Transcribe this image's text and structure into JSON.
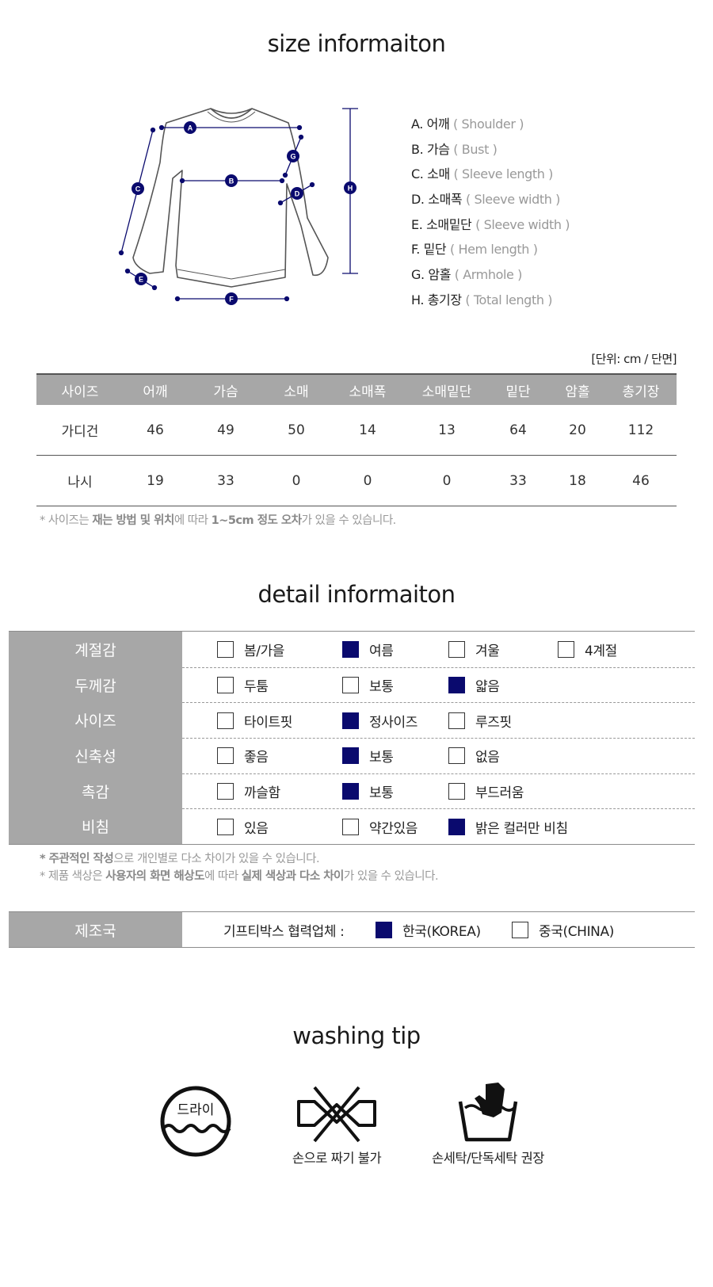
{
  "size_info": {
    "title": "size informaiton",
    "diagram_markers": [
      "A",
      "B",
      "C",
      "D",
      "E",
      "F",
      "G",
      "H"
    ],
    "legend": [
      {
        "code": "A. 어깨",
        "en": "( Shoulder )"
      },
      {
        "code": "B. 가슴",
        "en": "( Bust )"
      },
      {
        "code": "C. 소매",
        "en": "( Sleeve length )"
      },
      {
        "code": "D. 소매폭",
        "en": "( Sleeve width )"
      },
      {
        "code": "E. 소매밑단",
        "en": "( Sleeve width )"
      },
      {
        "code": "F. 밑단",
        "en": "( Hem length )"
      },
      {
        "code": "G. 암홀",
        "en": "( Armhole )"
      },
      {
        "code": "H. 총기장",
        "en": "( Total length )"
      }
    ],
    "unit": "[단위: cm / 단면]",
    "table": {
      "headers": [
        "사이즈",
        "어깨",
        "가슴",
        "소매",
        "소매폭",
        "소매밑단",
        "밑단",
        "암홀",
        "총기장"
      ],
      "rows": [
        [
          "가디건",
          "46",
          "49",
          "50",
          "14",
          "13",
          "64",
          "20",
          "112"
        ],
        [
          "나시",
          "19",
          "33",
          "0",
          "0",
          "0",
          "33",
          "18",
          "46"
        ]
      ]
    },
    "note": {
      "p1": "* 사이즈는 ",
      "b1": "재는 방법 및 위치",
      "p2": "에 따라 ",
      "b2": "1~5cm 정도 오차",
      "p3": "가 있을 수 있습니다."
    }
  },
  "detail_info": {
    "title": "detail informaiton",
    "rows": [
      {
        "label": "계절감",
        "options": [
          {
            "text": "봄/가을",
            "checked": false
          },
          {
            "text": "여름",
            "checked": true
          },
          {
            "text": "겨울",
            "checked": false
          },
          {
            "text": "4계절",
            "checked": false
          }
        ]
      },
      {
        "label": "두께감",
        "options": [
          {
            "text": "두툼",
            "checked": false
          },
          {
            "text": "보통",
            "checked": false
          },
          {
            "text": "얇음",
            "checked": true
          }
        ]
      },
      {
        "label": "사이즈",
        "options": [
          {
            "text": "타이트핏",
            "checked": false
          },
          {
            "text": "정사이즈",
            "checked": true
          },
          {
            "text": "루즈핏",
            "checked": false
          }
        ]
      },
      {
        "label": "신축성",
        "options": [
          {
            "text": "좋음",
            "checked": false
          },
          {
            "text": "보통",
            "checked": true
          },
          {
            "text": "없음",
            "checked": false
          }
        ]
      },
      {
        "label": "촉감",
        "options": [
          {
            "text": "까슬함",
            "checked": false
          },
          {
            "text": "보통",
            "checked": true
          },
          {
            "text": "부드러움",
            "checked": false
          }
        ]
      },
      {
        "label": "비침",
        "options": [
          {
            "text": "있음",
            "checked": false
          },
          {
            "text": "약간있음",
            "checked": false
          },
          {
            "text": "밝은 컬러만 비침",
            "checked": true
          }
        ]
      }
    ],
    "notes": [
      {
        "b1": "* 주관적인 작성",
        "p1": "으로 개인별로 다소 차이가 있을 수 있습니다."
      },
      {
        "p0": "* 제품 색상은 ",
        "b1": "사용자의 화면 해상도",
        "p1": "에 따라 ",
        "b2": "실제 색상과 다소 차이",
        "p2": "가 있을 수 있습니다."
      }
    ],
    "origin": {
      "label": "제조국",
      "prefix": "기프티박스 협력업체 :",
      "options": [
        {
          "text": "한국(KOREA)",
          "checked": true
        },
        {
          "text": "중국(CHINA)",
          "checked": false
        }
      ]
    }
  },
  "washing": {
    "title": "washing tip",
    "icons": [
      {
        "icon": "dry-clean-icon",
        "inner_text": "드라이",
        "caption": ""
      },
      {
        "icon": "no-wringing-icon",
        "caption": "손으로 짜기 불가"
      },
      {
        "icon": "hand-wash-icon",
        "caption": "손세탁/단독세탁 권장"
      }
    ]
  },
  "colors": {
    "accent": "#0a0a6e",
    "header_gray": "#a7a7a7"
  }
}
